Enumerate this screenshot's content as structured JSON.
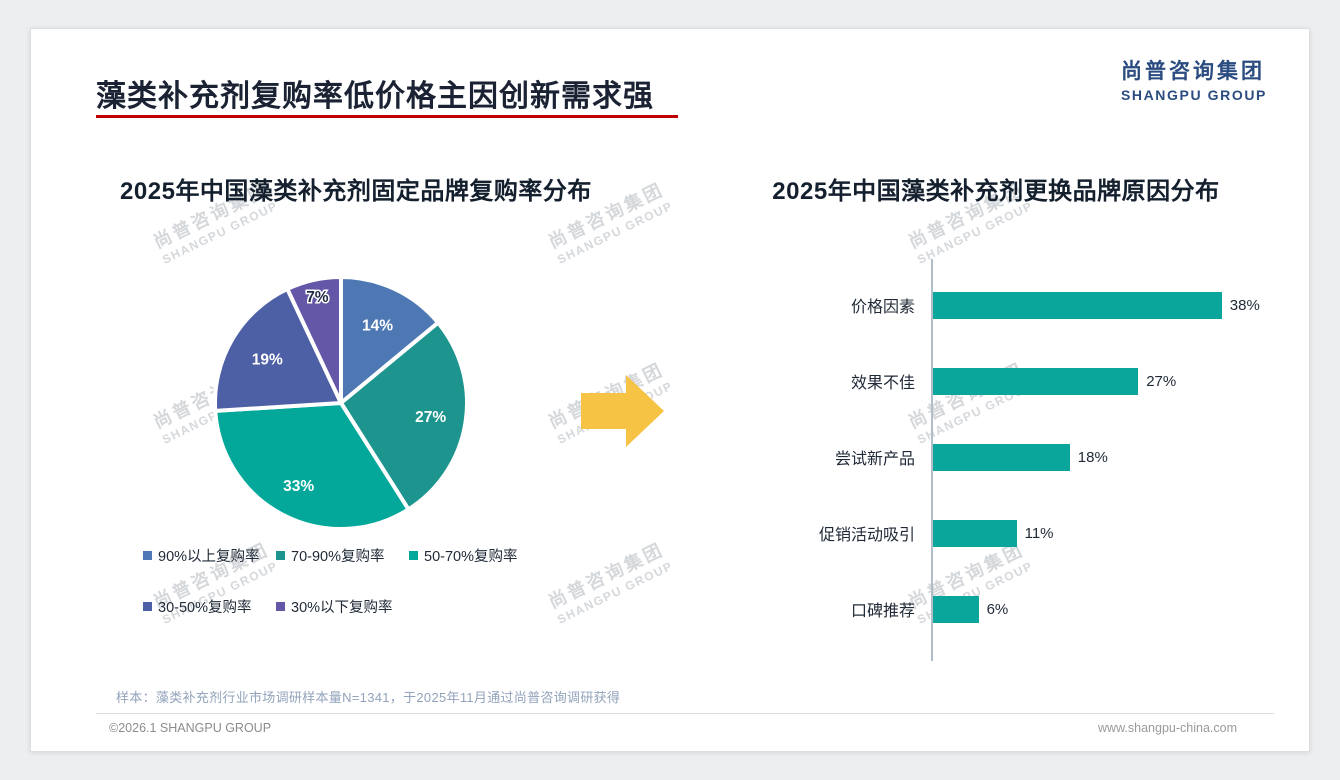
{
  "page": {
    "title": "藻类补充剂复购率低价格主因创新需求强",
    "title_underline_color": "#c00000",
    "logo": {
      "cn": "尚普咨询集团",
      "en": "SHANGPU GROUP"
    },
    "watermark": {
      "cn": "尚普咨询集团",
      "en": "SHANGPU GROUP"
    },
    "arrow_color": "#F6C344",
    "footnote": "样本：藻类补充剂行业市场调研样本量N=1341，于2025年11月通过尚普咨询调研获得",
    "footer": {
      "left": "©2026.1 SHANGPU GROUP",
      "right": "www.shangpu-china.com"
    }
  },
  "chart_data": [
    {
      "type": "pie",
      "title": "2025年中国藻类补充剂固定品牌复购率分布",
      "labels": [
        "90%以上复购率",
        "70-90%复购率",
        "50-70%复购率",
        "30-50%复购率",
        "30%以下复购率"
      ],
      "values": [
        14,
        27,
        33,
        19,
        7
      ],
      "value_labels": [
        "14%",
        "27%",
        "33%",
        "19%",
        "7%"
      ],
      "colors": [
        "#4d78b3",
        "#1d948d",
        "#04a89a",
        "#4d5fa5",
        "#6457a8"
      ],
      "label_colors": [
        "#ffffff",
        "#ffffff",
        "#ffffff",
        "#ffffff",
        "#1f2a44"
      ],
      "label_radii": [
        0.68,
        0.72,
        0.74,
        0.68,
        0.86
      ],
      "legend_rows": [
        [
          0,
          1,
          2
        ],
        [
          3,
          4
        ]
      ],
      "legend_position": "bottom",
      "start_angle_deg": 0,
      "direction": "clockwise"
    },
    {
      "type": "bar",
      "orientation": "horizontal",
      "title": "2025年中国藻类补充剂更换品牌原因分布",
      "categories": [
        "价格因素",
        "效果不佳",
        "尝试新产品",
        "促销活动吸引",
        "口碑推荐"
      ],
      "values": [
        38,
        27,
        18,
        11,
        6
      ],
      "value_labels": [
        "38%",
        "27%",
        "18%",
        "11%",
        "6%"
      ],
      "bar_color": "#0ba69b",
      "axis_color": "#b3bdc7",
      "xlim": [
        0,
        40
      ],
      "grid": false
    }
  ]
}
